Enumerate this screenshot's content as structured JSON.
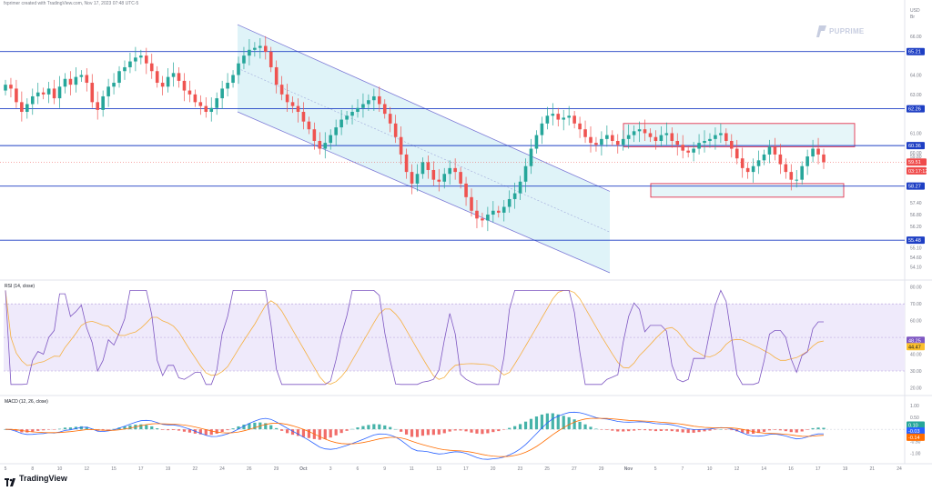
{
  "header": {
    "caption": "fxprimer created with TradingView.com, Nov 17, 2023 07:48 UTC-5"
  },
  "brand": {
    "logo_text": "PUPRIME",
    "logo_icon": "puprime-logo-icon"
  },
  "footer": {
    "logo_text": "TradingView",
    "logo_icon": "tradingview-logo-icon"
  },
  "chart_data": [
    {
      "type": "candlestick",
      "panel": "price",
      "y_axis": {
        "top_label": "USD",
        "sub_label": "Br",
        "ticks": [
          "66.00",
          "64.00",
          "63.00",
          "61.00",
          "60.00",
          "59.80",
          "57.40",
          "56.80",
          "56.20",
          "55.10",
          "54.60",
          "54.10"
        ],
        "ylim": [
          53.8,
          67.4
        ]
      },
      "x_axis": {
        "ticks": [
          "5",
          "8",
          "10",
          "12",
          "15",
          "17",
          "19",
          "22",
          "24",
          "26",
          "29",
          "Oct",
          "3",
          "6",
          "9",
          "11",
          "13",
          "17",
          "20",
          "23",
          "25",
          "27",
          "29",
          "Nov",
          "5",
          "7",
          "10",
          "12",
          "14",
          "16",
          "17",
          "19",
          "21",
          "24"
        ]
      },
      "horizontal_levels": [
        {
          "value": 65.21,
          "label": "65.21",
          "color": "#1e3fc4"
        },
        {
          "value": 62.26,
          "label": "62.26",
          "color": "#1e3fc4"
        },
        {
          "value": 60.36,
          "label": "60.36",
          "color": "#1e3fc4"
        },
        {
          "value": 58.27,
          "label": "58.27",
          "color": "#1e3fc4"
        },
        {
          "value": 55.48,
          "label": "55.48",
          "color": "#1e3fc4"
        }
      ],
      "price_labels": [
        {
          "value": 59.51,
          "label": "59.51",
          "color": "#ef4b4b"
        },
        {
          "value": 59.2,
          "label": "03:17:12",
          "color": "#ef4b4b"
        }
      ],
      "zones": [
        {
          "label": "resistance-zone",
          "from_x": "29",
          "to_x": "14",
          "y_range": [
            60.3,
            61.5
          ],
          "color": "#e3324e"
        },
        {
          "label": "support-zone",
          "from_x": "5",
          "to_x": "14",
          "y_range": [
            57.7,
            58.4
          ],
          "color": "#e3324e"
        }
      ],
      "channel": {
        "upper": [
          [
            26,
            66.6
          ],
          [
            30,
            58.0
          ]
        ],
        "lower": [
          [
            26,
            62.1
          ],
          [
            30,
            53.8
          ]
        ]
      },
      "series": [
        {
          "name": "up",
          "color": "#26a69a"
        },
        {
          "name": "down",
          "color": "#ef5350"
        }
      ],
      "candles_close": [
        63.5,
        63.3,
        62.6,
        62.1,
        62.5,
        62.9,
        63.1,
        63.0,
        63.3,
        62.8,
        63.4,
        63.8,
        63.5,
        63.9,
        64.0,
        63.6,
        62.6,
        62.2,
        62.9,
        63.4,
        63.6,
        64.2,
        64.4,
        64.7,
        64.9,
        65.0,
        64.6,
        64.2,
        63.6,
        63.4,
        63.9,
        64.1,
        63.7,
        63.2,
        63.0,
        62.6,
        62.4,
        62.1,
        62.3,
        62.8,
        63.3,
        63.6,
        64.0,
        64.6,
        65.0,
        65.3,
        65.4,
        65.5,
        65.2,
        64.4,
        63.5,
        63.0,
        62.6,
        62.4,
        62.1,
        61.6,
        61.2,
        60.6,
        60.2,
        60.5,
        60.9,
        61.3,
        61.7,
        61.9,
        62.1,
        62.3,
        62.5,
        62.7,
        62.9,
        62.5,
        62.0,
        61.5,
        60.8,
        59.9,
        59.0,
        58.4,
        58.9,
        59.5,
        59.1,
        58.6,
        58.5,
        58.9,
        59.2,
        59.0,
        58.4,
        57.7,
        57.0,
        56.6,
        56.5,
        56.8,
        57.0,
        56.9,
        57.2,
        57.6,
        57.9,
        58.5,
        59.3,
        60.2,
        60.9,
        61.5,
        61.9,
        62.0,
        61.7,
        61.8,
        61.9,
        61.5,
        61.2,
        60.8,
        60.5,
        60.4,
        60.7,
        60.9,
        60.6,
        60.4,
        60.7,
        60.9,
        61.1,
        61.2,
        61.0,
        60.8,
        60.6,
        60.9,
        61.0,
        60.6,
        60.4,
        60.1,
        60.0,
        60.2,
        60.5,
        60.6,
        60.7,
        60.9,
        61.0,
        60.6,
        60.2,
        59.7,
        59.2,
        59.0,
        59.3,
        59.6,
        59.9,
        60.3,
        59.9,
        59.4,
        59.0,
        58.6,
        58.6,
        59.3,
        59.8,
        60.2,
        59.9,
        59.5
      ],
      "candles_open": [
        63.2,
        63.5,
        63.3,
        62.6,
        62.1,
        62.5,
        62.9,
        63.1,
        63.0,
        63.3,
        62.8,
        63.4,
        63.8,
        63.5,
        63.9,
        64.0,
        63.6,
        62.6,
        62.2,
        62.9,
        63.4,
        63.6,
        64.2,
        64.4,
        64.7,
        64.9,
        65.0,
        64.6,
        64.2,
        63.6,
        63.4,
        63.9,
        64.1,
        63.7,
        63.2,
        63.0,
        62.6,
        62.4,
        62.1,
        62.3,
        62.8,
        63.3,
        63.6,
        64.0,
        64.6,
        65.0,
        65.3,
        65.4,
        65.5,
        65.2,
        64.4,
        63.5,
        63.0,
        62.6,
        62.4,
        62.1,
        61.6,
        61.2,
        60.6,
        60.2,
        60.5,
        60.9,
        61.3,
        61.7,
        61.9,
        62.1,
        62.3,
        62.5,
        62.7,
        62.9,
        62.5,
        62.0,
        61.5,
        60.8,
        59.9,
        59.0,
        58.4,
        58.9,
        59.5,
        59.1,
        58.6,
        58.5,
        58.9,
        59.2,
        59.0,
        58.4,
        57.7,
        57.0,
        56.6,
        56.5,
        56.8,
        57.0,
        56.9,
        57.2,
        57.6,
        57.9,
        58.5,
        59.3,
        60.2,
        60.9,
        61.5,
        61.9,
        62.0,
        61.7,
        61.8,
        61.9,
        61.5,
        61.2,
        60.8,
        60.5,
        60.4,
        60.7,
        60.9,
        60.6,
        60.4,
        60.7,
        60.9,
        61.1,
        61.2,
        61.0,
        60.8,
        60.6,
        60.9,
        61.0,
        60.6,
        60.4,
        60.1,
        60.0,
        60.2,
        60.5,
        60.6,
        60.7,
        60.9,
        61.0,
        60.6,
        60.2,
        59.7,
        59.2,
        59.0,
        59.3,
        59.6,
        59.9,
        60.3,
        59.9,
        59.4,
        59.0,
        58.6,
        58.6,
        59.3,
        59.8,
        60.2,
        59.9
      ]
    },
    {
      "type": "line",
      "panel": "rsi",
      "legend": "RSI (14, close)",
      "y_axis": {
        "ticks": [
          "80.00",
          "70.00",
          "60.00",
          "40.00",
          "30.00",
          "20.00"
        ],
        "ylim": [
          17,
          82
        ]
      },
      "band": [
        30,
        70
      ],
      "readouts": [
        {
          "value": 48.25,
          "label": "48.25",
          "color": "#7e57c2"
        },
        {
          "value": 44.47,
          "label": "44.47",
          "color": "#fbc02d"
        }
      ],
      "series": [
        {
          "name": "RSI",
          "color": "#7e57c2"
        },
        {
          "name": "RSI-based MA",
          "color": "#f5b041"
        }
      ]
    },
    {
      "type": "bar",
      "panel": "macd",
      "legend": "MACD (12, 26, close)",
      "y_axis": {
        "ticks": [
          "1.00",
          "0.50",
          "-0.50",
          "-1.00"
        ],
        "ylim": [
          -1.25,
          1.3
        ]
      },
      "readouts": [
        {
          "value": 0.1,
          "label": "0.10",
          "color": "#26a69a"
        },
        {
          "value": -0.03,
          "label": "-0.03",
          "color": "#2962ff"
        },
        {
          "value": -0.14,
          "label": "-0.14",
          "color": "#ff6d00"
        }
      ],
      "series": [
        {
          "name": "Histogram",
          "color": "#26a69a"
        },
        {
          "name": "MACD",
          "color": "#2962ff"
        },
        {
          "name": "Signal",
          "color": "#ff6d00"
        }
      ]
    }
  ]
}
